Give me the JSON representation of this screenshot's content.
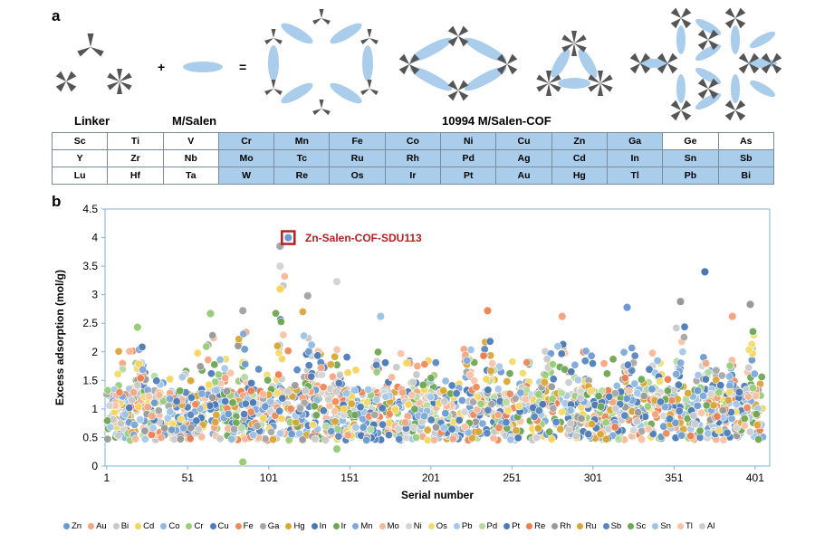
{
  "panel_a": {
    "label": "a",
    "plus": "+",
    "equals": "=",
    "captions": {
      "linker": "Linker",
      "msalen": "M/Salen",
      "cof": "10994 M/Salen-COF"
    },
    "periodic_table": [
      [
        {
          "el": "Sc",
          "metal": false
        },
        {
          "el": "Ti",
          "metal": false
        },
        {
          "el": "V",
          "metal": false
        },
        {
          "el": "Cr",
          "metal": true
        },
        {
          "el": "Mn",
          "metal": true
        },
        {
          "el": "Fe",
          "metal": true
        },
        {
          "el": "Co",
          "metal": true
        },
        {
          "el": "Ni",
          "metal": true
        },
        {
          "el": "Cu",
          "metal": true
        },
        {
          "el": "Zn",
          "metal": true
        },
        {
          "el": "Ga",
          "metal": true
        },
        {
          "el": "Ge",
          "metal": false
        },
        {
          "el": "As",
          "metal": false
        }
      ],
      [
        {
          "el": "Y",
          "metal": false
        },
        {
          "el": "Zr",
          "metal": false
        },
        {
          "el": "Nb",
          "metal": false
        },
        {
          "el": "Mo",
          "metal": true
        },
        {
          "el": "Tc",
          "metal": true
        },
        {
          "el": "Ru",
          "metal": true
        },
        {
          "el": "Rh",
          "metal": true
        },
        {
          "el": "Pd",
          "metal": true
        },
        {
          "el": "Ag",
          "metal": true
        },
        {
          "el": "Cd",
          "metal": true
        },
        {
          "el": "In",
          "metal": true
        },
        {
          "el": "Sn",
          "metal": true
        },
        {
          "el": "Sb",
          "metal": true
        }
      ],
      [
        {
          "el": "Lu",
          "metal": false
        },
        {
          "el": "Hf",
          "metal": false
        },
        {
          "el": "Ta",
          "metal": false
        },
        {
          "el": "W",
          "metal": true
        },
        {
          "el": "Re",
          "metal": true
        },
        {
          "el": "Os",
          "metal": true
        },
        {
          "el": "Ir",
          "metal": true
        },
        {
          "el": "Pt",
          "metal": true
        },
        {
          "el": "Au",
          "metal": true
        },
        {
          "el": "Hg",
          "metal": true
        },
        {
          "el": "Tl",
          "metal": true
        },
        {
          "el": "Pb",
          "metal": true
        },
        {
          "el": "Bi",
          "metal": true
        }
      ]
    ],
    "colors": {
      "salen": "#a9cdea",
      "linker": "#555555"
    }
  },
  "panel_b": {
    "label": "b"
  },
  "chart_data": {
    "type": "scatter",
    "xlabel": "Serial number",
    "ylabel": "Excess adsorption (mol/g)",
    "xlim": [
      0,
      410
    ],
    "ylim": [
      0,
      4.5
    ],
    "xticks": [
      1,
      51,
      101,
      151,
      201,
      251,
      301,
      351,
      401
    ],
    "yticks": [
      0,
      0.5,
      1,
      1.5,
      2,
      2.5,
      3,
      3.5,
      4,
      4.5
    ],
    "grid": false,
    "legend_position": "bottom",
    "highlight": {
      "label": "Zn-Salen-COF-SDU113",
      "x": 113,
      "y": 4.0,
      "color": "#b22222"
    },
    "series": [
      {
        "name": "Zn",
        "color": "#6b9bd1"
      },
      {
        "name": "Au",
        "color": "#f4a582"
      },
      {
        "name": "Bi",
        "color": "#c8c8c8"
      },
      {
        "name": "Cd",
        "color": "#f6d55c"
      },
      {
        "name": "Co",
        "color": "#8fb9df"
      },
      {
        "name": "Cr",
        "color": "#9acd7a"
      },
      {
        "name": "Cu",
        "color": "#4f7fb6"
      },
      {
        "name": "Fe",
        "color": "#ee8a5a"
      },
      {
        "name": "Ga",
        "color": "#a6a6a6"
      },
      {
        "name": "Hg",
        "color": "#d9a830"
      },
      {
        "name": "In",
        "color": "#4a78b4"
      },
      {
        "name": "Ir",
        "color": "#6ea84f"
      },
      {
        "name": "Mn",
        "color": "#7fa8d8"
      },
      {
        "name": "Mo",
        "color": "#f7b799"
      },
      {
        "name": "Ni",
        "color": "#d4d4d4"
      },
      {
        "name": "Os",
        "color": "#f2dc6e"
      },
      {
        "name": "Pb",
        "color": "#a8c8e8"
      },
      {
        "name": "Pd",
        "color": "#b5dba0"
      },
      {
        "name": "Pt",
        "color": "#4d7bb9"
      },
      {
        "name": "Re",
        "color": "#ef7d4f"
      },
      {
        "name": "Rh",
        "color": "#999999"
      },
      {
        "name": "Ru",
        "color": "#d8a53a"
      },
      {
        "name": "Sb",
        "color": "#5a86c0"
      },
      {
        "name": "Sc",
        "color": "#6fa756"
      },
      {
        "name": "Sn",
        "color": "#9dc3e6"
      },
      {
        "name": "Tl",
        "color": "#f8c4a6"
      },
      {
        "name": "Al",
        "color": "#cccccc"
      }
    ],
    "notable_points": [
      {
        "series": "Zn",
        "x": 113,
        "y": 4.0
      },
      {
        "series": "Ga",
        "x": 108,
        "y": 3.85
      },
      {
        "series": "Ni",
        "x": 108,
        "y": 3.5
      },
      {
        "series": "Cd",
        "x": 108,
        "y": 3.1
      },
      {
        "series": "Ni",
        "x": 143,
        "y": 3.23
      },
      {
        "series": "In",
        "x": 370,
        "y": 3.4
      },
      {
        "series": "Rh",
        "x": 355,
        "y": 2.88
      },
      {
        "series": "Rh",
        "x": 398,
        "y": 2.83
      },
      {
        "series": "Ga",
        "x": 125,
        "y": 2.98
      },
      {
        "series": "Zn",
        "x": 322,
        "y": 2.78
      },
      {
        "series": "Ga",
        "x": 85,
        "y": 2.72
      },
      {
        "series": "Fe",
        "x": 236,
        "y": 2.72
      },
      {
        "series": "Cr",
        "x": 65,
        "y": 2.67
      },
      {
        "series": "Au",
        "x": 282,
        "y": 2.62
      },
      {
        "series": "Au",
        "x": 387,
        "y": 2.62
      },
      {
        "series": "Sn",
        "x": 170,
        "y": 2.62
      },
      {
        "series": "Cr",
        "x": 20,
        "y": 2.43
      },
      {
        "series": "Cr",
        "x": 85,
        "y": 0.07
      },
      {
        "series": "Cr",
        "x": 143,
        "y": 0.3
      }
    ]
  }
}
